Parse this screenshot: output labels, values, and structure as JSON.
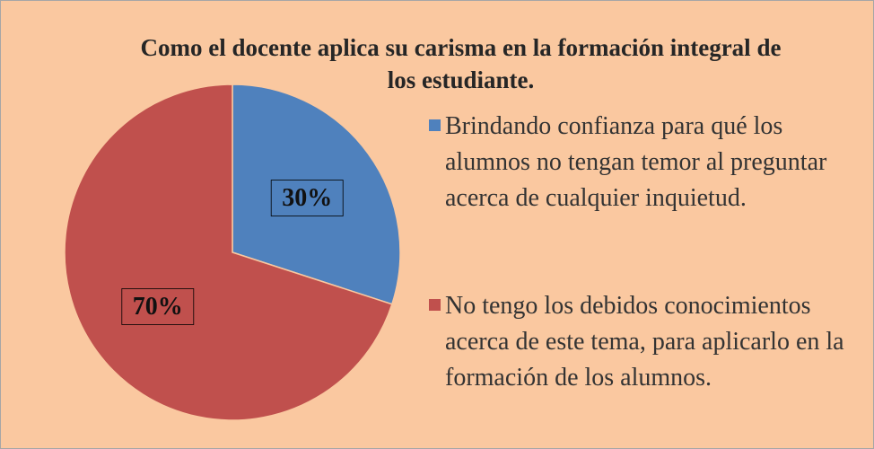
{
  "chart_data": {
    "type": "pie",
    "title": "Como el docente aplica su carisma en la formación integral de los estudiante.",
    "categories": [
      "Brindando confianza para qué los alumnos no tengan temor al preguntar acerca de cualquier inquietud.",
      "No tengo los debidos conocimientos acerca de este tema, para aplicarlo en la formación de los alumnos."
    ],
    "values": [
      30,
      70
    ],
    "value_labels": [
      "30%",
      "70%"
    ],
    "colors": [
      "#4f81bd",
      "#c0504d"
    ],
    "legend": "right"
  }
}
